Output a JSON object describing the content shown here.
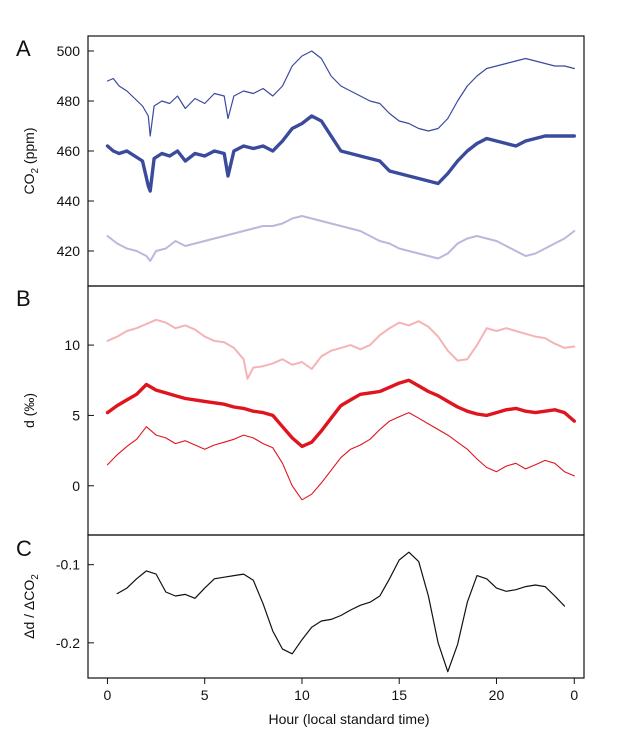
{
  "chart_data": {
    "type": "line",
    "xlabel": "Hour (local standard time)",
    "x_ticks": [
      "0",
      "5",
      "10",
      "15",
      "20",
      "0"
    ],
    "xlim": [
      -1,
      24.5
    ],
    "panels": [
      {
        "letter": "A",
        "ylabel_main": "CO",
        "ylabel_sub": "2",
        "ylabel_tail": " (ppm)",
        "ylim": [
          406,
          506
        ],
        "y_ticks": [
          420,
          440,
          460,
          480,
          500
        ],
        "series": [
          {
            "color": "#3a4a9c",
            "width": 1.2,
            "x": [
              0,
              0.3,
              0.6,
              1,
              1.4,
              1.8,
              2.1,
              2.2,
              2.4,
              2.8,
              3.2,
              3.6,
              4,
              4.5,
              5,
              5.5,
              6,
              6.2,
              6.5,
              7,
              7.5,
              8,
              8.5,
              9,
              9.5,
              10,
              10.5,
              11,
              11.5,
              12,
              12.5,
              13,
              13.5,
              14,
              14.5,
              15,
              15.5,
              16,
              16.5,
              17,
              17.5,
              18,
              18.5,
              19,
              19.5,
              20,
              20.5,
              21,
              21.5,
              22,
              22.5,
              23,
              23.5,
              24
            ],
            "y": [
              488,
              489,
              486,
              484,
              481,
              478,
              474,
              466,
              478,
              480,
              479,
              482,
              477,
              481,
              479,
              483,
              482,
              473,
              482,
              484,
              483,
              485,
              482,
              486,
              494,
              498,
              500,
              497,
              490,
              486,
              484,
              482,
              480,
              479,
              475,
              472,
              471,
              469,
              468,
              469,
              473,
              480,
              486,
              490,
              493,
              494,
              495,
              496,
              497,
              496,
              495,
              494,
              494,
              493
            ]
          },
          {
            "color": "#3a4a9c",
            "width": 3.4,
            "x": [
              0,
              0.3,
              0.6,
              1,
              1.4,
              1.8,
              2.1,
              2.2,
              2.4,
              2.8,
              3.2,
              3.6,
              4,
              4.5,
              5,
              5.5,
              6,
              6.2,
              6.5,
              7,
              7.5,
              8,
              8.5,
              9,
              9.5,
              10,
              10.5,
              11,
              11.5,
              12,
              12.5,
              13,
              13.5,
              14,
              14.5,
              15,
              15.5,
              16,
              16.5,
              17,
              17.5,
              18,
              18.5,
              19,
              19.5,
              20,
              20.5,
              21,
              21.5,
              22,
              22.5,
              23,
              23.5,
              24
            ],
            "y": [
              462,
              460,
              459,
              460,
              458,
              456,
              446,
              444,
              457,
              459,
              458,
              460,
              456,
              459,
              458,
              460,
              459,
              450,
              460,
              462,
              461,
              462,
              460,
              464,
              469,
              471,
              474,
              472,
              466,
              460,
              459,
              458,
              457,
              456,
              452,
              451,
              450,
              449,
              448,
              447,
              451,
              456,
              460,
              463,
              465,
              464,
              463,
              462,
              464,
              465,
              466,
              466,
              466,
              466
            ]
          },
          {
            "color": "#b9b8dd",
            "width": 2,
            "x": [
              0,
              0.5,
              1,
              1.5,
              2,
              2.2,
              2.5,
              3,
              3.5,
              4,
              4.5,
              5,
              5.5,
              6,
              6.5,
              7,
              7.5,
              8,
              8.5,
              9,
              9.5,
              10,
              10.5,
              11,
              11.5,
              12,
              12.5,
              13,
              13.5,
              14,
              14.5,
              15,
              15.5,
              16,
              16.5,
              17,
              17.5,
              18,
              18.5,
              19,
              19.5,
              20,
              20.5,
              21,
              21.5,
              22,
              22.5,
              23,
              23.5,
              24
            ],
            "y": [
              426,
              423,
              421,
              420,
              418,
              416,
              420,
              421,
              424,
              422,
              423,
              424,
              425,
              426,
              427,
              428,
              429,
              430,
              430,
              431,
              433,
              434,
              433,
              432,
              431,
              430,
              429,
              428,
              426,
              424,
              423,
              421,
              420,
              419,
              418,
              417,
              419,
              423,
              425,
              426,
              425,
              424,
              422,
              420,
              418,
              419,
              421,
              423,
              425,
              428
            ]
          }
        ]
      },
      {
        "letter": "B",
        "ylabel_main": "d (‰)",
        "ylabel_sub": "",
        "ylabel_tail": "",
        "ylim": [
          -3.5,
          14.2
        ],
        "y_ticks": [
          0,
          5,
          10
        ],
        "series": [
          {
            "color": "#f4b4b6",
            "width": 2,
            "x": [
              0,
              0.5,
              1,
              1.5,
              2,
              2.5,
              3,
              3.5,
              4,
              4.5,
              5,
              5.5,
              6,
              6.5,
              7,
              7.2,
              7.5,
              8,
              8.5,
              9,
              9.5,
              10,
              10.5,
              11,
              11.5,
              12,
              12.5,
              13,
              13.5,
              14,
              14.5,
              15,
              15.5,
              16,
              16.5,
              17,
              17.5,
              18,
              18.5,
              19,
              19.5,
              20,
              20.5,
              21,
              21.5,
              22,
              22.5,
              23,
              23.5,
              24
            ],
            "y": [
              10.3,
              10.6,
              11.0,
              11.2,
              11.5,
              11.8,
              11.6,
              11.2,
              11.4,
              11.1,
              10.6,
              10.3,
              10.2,
              9.8,
              9.0,
              7.6,
              8.4,
              8.5,
              8.7,
              9.0,
              8.6,
              8.8,
              8.3,
              9.2,
              9.6,
              9.8,
              10.0,
              9.7,
              10.0,
              10.7,
              11.2,
              11.6,
              11.4,
              11.7,
              11.3,
              10.6,
              9.6,
              8.9,
              9.0,
              10.0,
              11.2,
              11.0,
              11.2,
              11.0,
              10.8,
              10.6,
              10.5,
              10.1,
              9.8,
              9.9
            ]
          },
          {
            "color": "#e0141e",
            "width": 3.4,
            "x": [
              0,
              0.5,
              1,
              1.5,
              2,
              2.5,
              3,
              3.5,
              4,
              4.5,
              5,
              5.5,
              6,
              6.5,
              7,
              7.5,
              8,
              8.5,
              9,
              9.5,
              10,
              10.5,
              11,
              11.5,
              12,
              12.5,
              13,
              13.5,
              14,
              14.5,
              15,
              15.5,
              16,
              16.5,
              17,
              17.5,
              18,
              18.5,
              19,
              19.5,
              20,
              20.5,
              21,
              21.5,
              22,
              22.5,
              23,
              23.5,
              24
            ],
            "y": [
              5.2,
              5.7,
              6.1,
              6.5,
              7.2,
              6.8,
              6.6,
              6.4,
              6.2,
              6.1,
              6.0,
              5.9,
              5.8,
              5.6,
              5.5,
              5.3,
              5.2,
              5.0,
              4.2,
              3.4,
              2.8,
              3.1,
              3.9,
              4.8,
              5.7,
              6.1,
              6.5,
              6.6,
              6.7,
              7.0,
              7.3,
              7.5,
              7.1,
              6.7,
              6.4,
              6.0,
              5.6,
              5.3,
              5.1,
              5.0,
              5.2,
              5.4,
              5.5,
              5.3,
              5.2,
              5.3,
              5.4,
              5.2,
              4.6
            ]
          },
          {
            "color": "#e0141e",
            "width": 1.1,
            "x": [
              0,
              0.5,
              1,
              1.5,
              2,
              2.5,
              3,
              3.5,
              4,
              4.5,
              5,
              5.5,
              6,
              6.5,
              7,
              7.5,
              8,
              8.5,
              9,
              9.5,
              10,
              10.5,
              11,
              11.5,
              12,
              12.5,
              13,
              13.5,
              14,
              14.5,
              15,
              15.5,
              16,
              16.5,
              17,
              17.5,
              18,
              18.5,
              19,
              19.5,
              20,
              20.5,
              21,
              21.5,
              22,
              22.5,
              23,
              23.5,
              24
            ],
            "y": [
              1.5,
              2.2,
              2.8,
              3.3,
              4.2,
              3.6,
              3.4,
              3.0,
              3.2,
              2.9,
              2.6,
              2.9,
              3.1,
              3.3,
              3.6,
              3.4,
              3.0,
              2.7,
              1.6,
              0.0,
              -1.0,
              -0.6,
              0.2,
              1.1,
              2.0,
              2.6,
              2.9,
              3.3,
              4.0,
              4.6,
              4.9,
              5.2,
              4.8,
              4.4,
              4.0,
              3.6,
              3.1,
              2.6,
              1.9,
              1.3,
              1.0,
              1.4,
              1.6,
              1.2,
              1.5,
              1.8,
              1.6,
              1.0,
              0.7
            ]
          }
        ]
      },
      {
        "letter": "C",
        "ylabel_main": "Δd / ΔCO",
        "ylabel_sub": "2",
        "ylabel_tail": "",
        "ylim": [
          -0.245,
          -0.062
        ],
        "y_ticks": [
          -0.1,
          -0.2
        ],
        "series": [
          {
            "color": "#111111",
            "width": 1.2,
            "x": [
              0.5,
              1,
              1.5,
              2,
              2.5,
              3,
              3.5,
              4,
              4.5,
              5,
              5.5,
              6,
              6.5,
              7,
              7.5,
              8,
              8.5,
              9,
              9.5,
              10,
              10.5,
              11,
              11.5,
              12,
              12.5,
              13,
              13.5,
              14,
              14.5,
              15,
              15.5,
              16,
              16.5,
              17,
              17.5,
              18,
              18.5,
              19,
              19.5,
              20,
              20.5,
              21,
              21.5,
              22,
              22.5,
              23,
              23.5
            ],
            "y": [
              -0.137,
              -0.13,
              -0.118,
              -0.108,
              -0.112,
              -0.135,
              -0.14,
              -0.138,
              -0.143,
              -0.13,
              -0.118,
              -0.116,
              -0.114,
              -0.112,
              -0.12,
              -0.15,
              -0.185,
              -0.208,
              -0.214,
              -0.196,
              -0.18,
              -0.172,
              -0.17,
              -0.165,
              -0.158,
              -0.152,
              -0.148,
              -0.14,
              -0.118,
              -0.094,
              -0.084,
              -0.096,
              -0.14,
              -0.2,
              -0.237,
              -0.202,
              -0.148,
              -0.114,
              -0.118,
              -0.13,
              -0.134,
              -0.132,
              -0.128,
              -0.126,
              -0.128,
              -0.14,
              -0.153
            ]
          }
        ]
      }
    ]
  }
}
